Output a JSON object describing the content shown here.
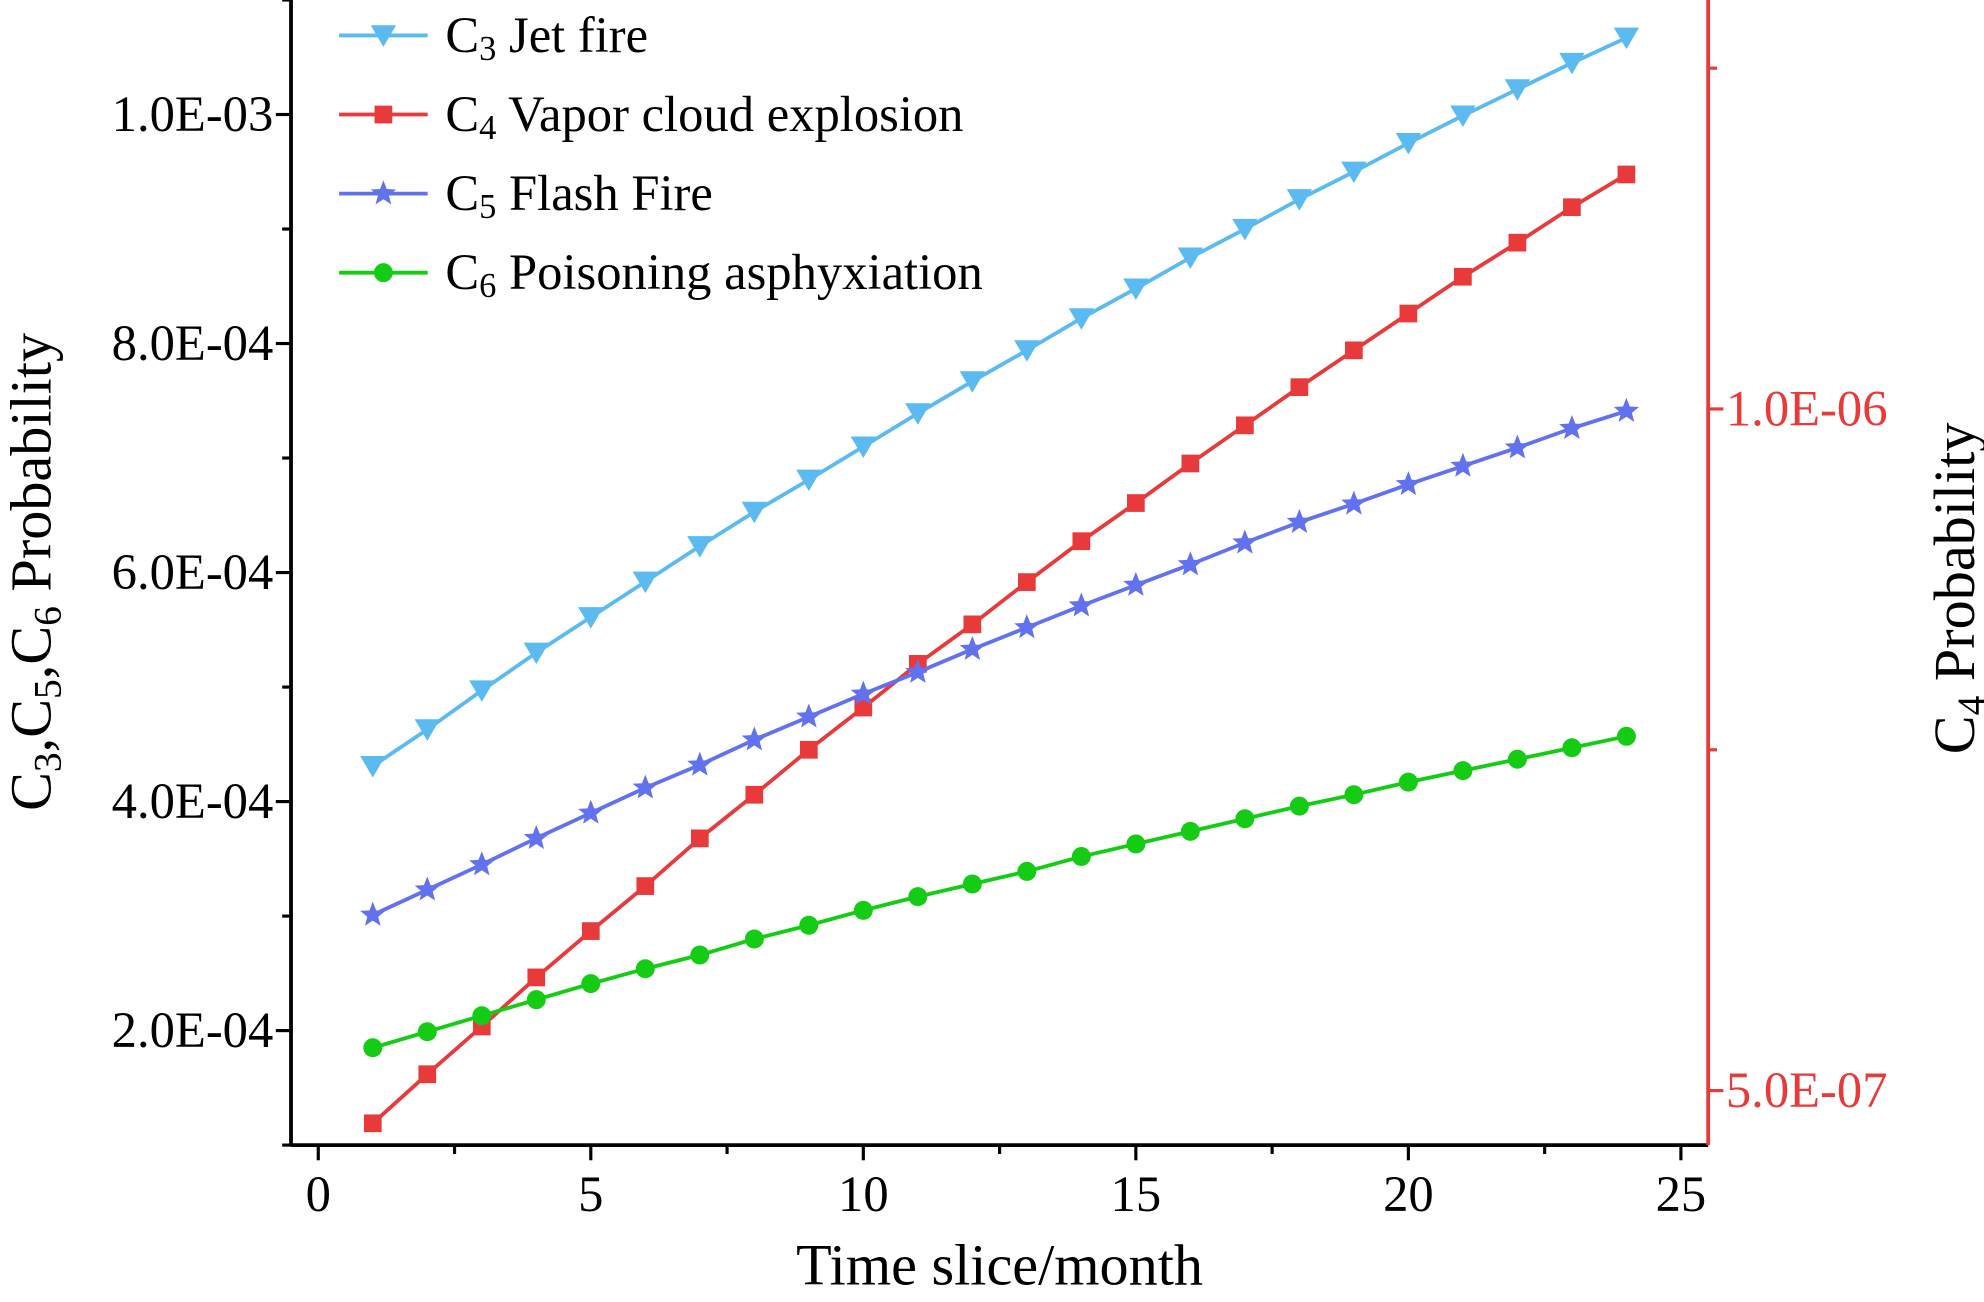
{
  "chart_data": {
    "type": "line",
    "x": [
      1,
      2,
      3,
      4,
      5,
      6,
      7,
      8,
      9,
      10,
      11,
      12,
      13,
      14,
      15,
      16,
      17,
      18,
      19,
      20,
      21,
      22,
      23,
      24
    ],
    "xlabel": "Time slice/month",
    "xlim": [
      -0.5,
      25.5
    ],
    "xticks": [
      "0",
      "5",
      "10",
      "15",
      "20",
      "25"
    ],
    "ylabel_left": [
      {
        "t": "C"
      },
      {
        "s": "3"
      },
      {
        "t": ",C"
      },
      {
        "s": "5"
      },
      {
        "t": ",C"
      },
      {
        "s": "6"
      },
      {
        "t": " Probability"
      }
    ],
    "ylabel_right": [
      {
        "t": "C"
      },
      {
        "s": "4"
      },
      {
        "t": " Probability"
      }
    ],
    "ylim_left": [
      0.0001,
      0.0011
    ],
    "ylim_right": [
      4.6e-07,
      1.3e-06
    ],
    "yticks_left": [
      {
        "v": 0.0002,
        "label": "2.0E-04"
      },
      {
        "v": 0.0004,
        "label": "4.0E-04"
      },
      {
        "v": 0.0006,
        "label": "6.0E-04"
      },
      {
        "v": 0.0008,
        "label": "8.0E-04"
      },
      {
        "v": 0.001,
        "label": "1.0E-03"
      }
    ],
    "yticks_right": [
      {
        "v": 5e-07,
        "label": "5.0E-07"
      },
      {
        "v": 1e-06,
        "label": "1.0E-06"
      }
    ],
    "right_axis_color": "#E8393B",
    "grid": false,
    "legend_placement": "top-left",
    "series": [
      {
        "name": "C3 Jet fire",
        "label": [
          {
            "t": "C"
          },
          {
            "s": "3"
          },
          {
            "t": " Jet fire"
          }
        ],
        "axis": "left",
        "color": "#5BBAF0",
        "marker": "triangle-down",
        "values": [
          0.000431,
          0.000463,
          0.000497,
          0.00053,
          0.000561,
          0.000592,
          0.000623,
          0.000653,
          0.000681,
          0.00071,
          0.000739,
          0.000767,
          0.000794,
          0.000822,
          0.000848,
          0.000875,
          0.0009,
          0.000926,
          0.00095,
          0.000975,
          0.000999,
          0.001022,
          0.001045,
          0.001067
        ]
      },
      {
        "name": "C4 Vapor cloud explosion",
        "label": [
          {
            "t": "C"
          },
          {
            "s": "4"
          },
          {
            "t": " Vapor cloud explosion"
          }
        ],
        "axis": "right",
        "color": "#E8393B",
        "marker": "square",
        "values": [
          4.76e-07,
          5.12e-07,
          5.47e-07,
          5.83e-07,
          6.17e-07,
          6.5e-07,
          6.85e-07,
          7.17e-07,
          7.5e-07,
          7.81e-07,
          8.13e-07,
          8.42e-07,
          8.73e-07,
          9.03e-07,
          9.31e-07,
          9.6e-07,
          9.88e-07,
          1.016e-06,
          1.043e-06,
          1.07e-06,
          1.097e-06,
          1.122e-06,
          1.148e-06,
          1.172e-06
        ]
      },
      {
        "name": "C5 Flash Fire",
        "label": [
          {
            "t": "C"
          },
          {
            "s": "5"
          },
          {
            "t": " Flash Fire"
          }
        ],
        "axis": "left",
        "color": "#6272EE",
        "marker": "star",
        "values": [
          0.000301,
          0.000323,
          0.000345,
          0.000368,
          0.00039,
          0.000412,
          0.000432,
          0.000454,
          0.000474,
          0.000494,
          0.000513,
          0.000533,
          0.000552,
          0.000571,
          0.000589,
          0.000607,
          0.000626,
          0.000644,
          0.00066,
          0.000677,
          0.000693,
          0.000709,
          0.000726,
          0.000741
        ]
      },
      {
        "name": "C6 Poisoning asphyxiation",
        "label": [
          {
            "t": "C"
          },
          {
            "s": "6"
          },
          {
            "t": " Poisoning asphyxiation"
          }
        ],
        "axis": "left",
        "color": "#14CC14",
        "marker": "circle",
        "values": [
          0.000185,
          0.000199,
          0.000213,
          0.000227,
          0.000241,
          0.000254,
          0.000266,
          0.00028,
          0.000292,
          0.000305,
          0.000317,
          0.000328,
          0.000339,
          0.000352,
          0.000363,
          0.000374,
          0.000385,
          0.000396,
          0.000406,
          0.000417,
          0.000427,
          0.000437,
          0.000447,
          0.000457
        ]
      }
    ]
  }
}
